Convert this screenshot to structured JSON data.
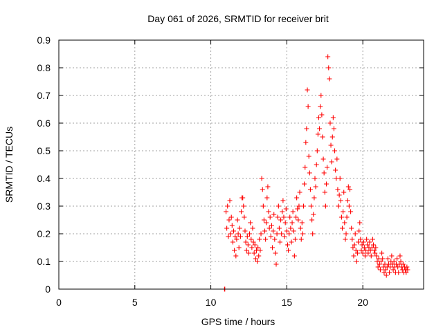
{
  "chart_data": {
    "type": "scatter",
    "title": "Day 061 of 2026, SRMTID for receiver brit",
    "xlabel": "GPS time / hours",
    "ylabel": "SRMTID / TECUs",
    "xlim": [
      0,
      24
    ],
    "ylim": [
      0,
      0.9
    ],
    "xticks": [
      0,
      5,
      10,
      15,
      20
    ],
    "xtick_labels": [
      "0",
      "5",
      "10",
      "15",
      "20"
    ],
    "yticks": [
      0,
      0.1,
      0.2,
      0.3,
      0.4,
      0.5,
      0.6,
      0.7,
      0.8,
      0.9
    ],
    "ytick_labels": [
      "0",
      "0.1",
      "0.2",
      "0.3",
      "0.4",
      "0.5",
      "0.6",
      "0.7",
      "0.8",
      "0.9"
    ],
    "grid": true,
    "marker": "+",
    "marker_color": "#ff0000",
    "series": [
      {
        "name": "SRMTID",
        "points": [
          [
            10.9,
            0.0
          ],
          [
            10.92,
            0.0
          ],
          [
            11.0,
            0.28
          ],
          [
            11.05,
            0.22
          ],
          [
            11.1,
            0.3
          ],
          [
            11.15,
            0.19
          ],
          [
            11.2,
            0.25
          ],
          [
            11.25,
            0.32
          ],
          [
            11.3,
            0.2
          ],
          [
            11.35,
            0.26
          ],
          [
            11.4,
            0.23
          ],
          [
            11.45,
            0.17
          ],
          [
            11.5,
            0.21
          ],
          [
            11.55,
            0.14
          ],
          [
            11.6,
            0.19
          ],
          [
            11.65,
            0.12
          ],
          [
            11.7,
            0.18
          ],
          [
            11.75,
            0.25
          ],
          [
            11.8,
            0.2
          ],
          [
            11.85,
            0.15
          ],
          [
            11.9,
            0.22
          ],
          [
            11.95,
            0.19
          ],
          [
            12.0,
            0.28
          ],
          [
            12.05,
            0.33
          ],
          [
            12.1,
            0.33
          ],
          [
            12.15,
            0.3
          ],
          [
            12.2,
            0.26
          ],
          [
            12.25,
            0.21
          ],
          [
            12.3,
            0.17
          ],
          [
            12.35,
            0.14
          ],
          [
            12.4,
            0.19
          ],
          [
            12.45,
            0.16
          ],
          [
            12.5,
            0.13
          ],
          [
            12.55,
            0.2
          ],
          [
            12.6,
            0.24
          ],
          [
            12.65,
            0.18
          ],
          [
            12.7,
            0.15
          ],
          [
            12.75,
            0.22
          ],
          [
            12.8,
            0.17
          ],
          [
            12.85,
            0.13
          ],
          [
            12.9,
            0.16
          ],
          [
            12.95,
            0.11
          ],
          [
            13.0,
            0.14
          ],
          [
            13.05,
            0.1
          ],
          [
            13.1,
            0.15
          ],
          [
            13.15,
            0.12
          ],
          [
            13.2,
            0.18
          ],
          [
            13.25,
            0.14
          ],
          [
            13.3,
            0.2
          ],
          [
            13.35,
            0.4
          ],
          [
            13.4,
            0.36
          ],
          [
            13.45,
            0.3
          ],
          [
            13.5,
            0.25
          ],
          [
            13.55,
            0.21
          ],
          [
            13.6,
            0.18
          ],
          [
            13.65,
            0.24
          ],
          [
            13.7,
            0.33
          ],
          [
            13.75,
            0.37
          ],
          [
            13.8,
            0.28
          ],
          [
            13.85,
            0.22
          ],
          [
            13.9,
            0.26
          ],
          [
            13.95,
            0.19
          ],
          [
            14.0,
            0.23
          ],
          [
            14.05,
            0.15
          ],
          [
            14.1,
            0.21
          ],
          [
            14.15,
            0.27
          ],
          [
            14.2,
            0.18
          ],
          [
            14.25,
            0.13
          ],
          [
            14.3,
            0.09
          ],
          [
            14.35,
            0.2
          ],
          [
            14.4,
            0.26
          ],
          [
            14.45,
            0.3
          ],
          [
            14.5,
            0.22
          ],
          [
            14.55,
            0.17
          ],
          [
            14.6,
            0.25
          ],
          [
            14.65,
            0.2
          ],
          [
            14.7,
            0.28
          ],
          [
            14.75,
            0.32
          ],
          [
            14.8,
            0.26
          ],
          [
            14.85,
            0.19
          ],
          [
            14.9,
            0.24
          ],
          [
            14.95,
            0.29
          ],
          [
            15.0,
            0.21
          ],
          [
            15.05,
            0.16
          ],
          [
            15.1,
            0.14
          ],
          [
            15.15,
            0.2
          ],
          [
            15.2,
            0.26
          ],
          [
            15.25,
            0.22
          ],
          [
            15.3,
            0.17
          ],
          [
            15.35,
            0.24
          ],
          [
            15.4,
            0.28
          ],
          [
            15.45,
            0.21
          ],
          [
            15.5,
            0.12
          ],
          [
            15.55,
            0.18
          ],
          [
            15.6,
            0.26
          ],
          [
            15.65,
            0.33
          ],
          [
            15.7,
            0.29
          ],
          [
            15.75,
            0.25
          ],
          [
            15.8,
            0.3
          ],
          [
            15.85,
            0.35
          ],
          [
            15.9,
            0.22
          ],
          [
            15.95,
            0.18
          ],
          [
            16.0,
            0.24
          ],
          [
            16.05,
            0.2
          ],
          [
            16.1,
            0.3
          ],
          [
            16.15,
            0.38
          ],
          [
            16.2,
            0.44
          ],
          [
            16.25,
            0.53
          ],
          [
            16.3,
            0.58
          ],
          [
            16.35,
            0.72
          ],
          [
            16.4,
            0.66
          ],
          [
            16.45,
            0.48
          ],
          [
            16.5,
            0.42
          ],
          [
            16.55,
            0.36
          ],
          [
            16.6,
            0.3
          ],
          [
            16.65,
            0.25
          ],
          [
            16.7,
            0.2
          ],
          [
            16.75,
            0.27
          ],
          [
            16.8,
            0.33
          ],
          [
            16.85,
            0.4
          ],
          [
            16.9,
            0.37
          ],
          [
            16.95,
            0.45
          ],
          [
            17.0,
            0.5
          ],
          [
            17.05,
            0.56
          ],
          [
            17.1,
            0.62
          ],
          [
            17.15,
            0.58
          ],
          [
            17.2,
            0.66
          ],
          [
            17.25,
            0.7
          ],
          [
            17.3,
            0.63
          ],
          [
            17.35,
            0.55
          ],
          [
            17.4,
            0.47
          ],
          [
            17.45,
            0.42
          ],
          [
            17.5,
            0.35
          ],
          [
            17.55,
            0.3
          ],
          [
            17.6,
            0.38
          ],
          [
            17.65,
            0.44
          ],
          [
            17.7,
            0.84
          ],
          [
            17.75,
            0.8
          ],
          [
            17.8,
            0.76
          ],
          [
            17.85,
            0.6
          ],
          [
            17.9,
            0.52
          ],
          [
            17.95,
            0.46
          ],
          [
            18.0,
            0.55
          ],
          [
            18.05,
            0.62
          ],
          [
            18.1,
            0.58
          ],
          [
            18.15,
            0.5
          ],
          [
            18.2,
            0.43
          ],
          [
            18.25,
            0.4
          ],
          [
            18.3,
            0.47
          ],
          [
            18.35,
            0.36
          ],
          [
            18.4,
            0.3
          ],
          [
            18.45,
            0.34
          ],
          [
            18.5,
            0.4
          ],
          [
            18.55,
            0.32
          ],
          [
            18.6,
            0.26
          ],
          [
            18.65,
            0.22
          ],
          [
            18.7,
            0.28
          ],
          [
            18.75,
            0.35
          ],
          [
            18.8,
            0.24
          ],
          [
            18.85,
            0.18
          ],
          [
            18.9,
            0.2
          ],
          [
            18.95,
            0.26
          ],
          [
            19.0,
            0.32
          ],
          [
            19.05,
            0.37
          ],
          [
            19.1,
            0.3
          ],
          [
            19.15,
            0.36
          ],
          [
            19.2,
            0.28
          ],
          [
            19.25,
            0.22
          ],
          [
            19.3,
            0.18
          ],
          [
            19.35,
            0.15
          ],
          [
            19.4,
            0.12
          ],
          [
            19.45,
            0.16
          ],
          [
            19.5,
            0.2
          ],
          [
            19.55,
            0.14
          ],
          [
            19.6,
            0.1
          ],
          [
            19.65,
            0.13
          ],
          [
            19.7,
            0.17
          ],
          [
            19.75,
            0.21
          ],
          [
            19.8,
            0.24
          ],
          [
            19.85,
            0.18
          ],
          [
            19.9,
            0.14
          ],
          [
            19.95,
            0.16
          ],
          [
            20.0,
            0.13
          ],
          [
            20.05,
            0.17
          ],
          [
            20.1,
            0.15
          ],
          [
            20.15,
            0.12
          ],
          [
            20.2,
            0.14
          ],
          [
            20.25,
            0.18
          ],
          [
            20.3,
            0.16
          ],
          [
            20.35,
            0.13
          ],
          [
            20.4,
            0.15
          ],
          [
            20.45,
            0.17
          ],
          [
            20.5,
            0.14
          ],
          [
            20.55,
            0.12
          ],
          [
            20.6,
            0.15
          ],
          [
            20.65,
            0.18
          ],
          [
            20.7,
            0.16
          ],
          [
            20.75,
            0.14
          ],
          [
            20.8,
            0.13
          ],
          [
            20.85,
            0.15
          ],
          [
            20.9,
            0.12
          ],
          [
            20.95,
            0.1
          ],
          [
            21.0,
            0.08
          ],
          [
            21.05,
            0.11
          ],
          [
            21.1,
            0.09
          ],
          [
            21.15,
            0.07
          ],
          [
            21.2,
            0.1
          ],
          [
            21.25,
            0.13
          ],
          [
            21.3,
            0.11
          ],
          [
            21.35,
            0.08
          ],
          [
            21.4,
            0.06
          ],
          [
            21.45,
            0.09
          ],
          [
            21.5,
            0.07
          ],
          [
            21.55,
            0.05
          ],
          [
            21.6,
            0.08
          ],
          [
            21.65,
            0.11
          ],
          [
            21.7,
            0.09
          ],
          [
            21.75,
            0.06
          ],
          [
            21.8,
            0.08
          ],
          [
            21.85,
            0.1
          ],
          [
            21.9,
            0.12
          ],
          [
            21.95,
            0.09
          ],
          [
            22.0,
            0.07
          ],
          [
            22.05,
            0.1
          ],
          [
            22.1,
            0.08
          ],
          [
            22.15,
            0.06
          ],
          [
            22.2,
            0.09
          ],
          [
            22.25,
            0.11
          ],
          [
            22.3,
            0.08
          ],
          [
            22.35,
            0.06
          ],
          [
            22.4,
            0.09
          ],
          [
            22.45,
            0.12
          ],
          [
            22.5,
            0.1
          ],
          [
            22.55,
            0.08
          ],
          [
            22.6,
            0.07
          ],
          [
            22.65,
            0.09
          ],
          [
            22.7,
            0.06
          ],
          [
            22.75,
            0.08
          ],
          [
            22.8,
            0.07
          ],
          [
            22.85,
            0.06
          ],
          [
            22.9,
            0.08
          ],
          [
            22.95,
            0.07
          ]
        ]
      }
    ]
  }
}
